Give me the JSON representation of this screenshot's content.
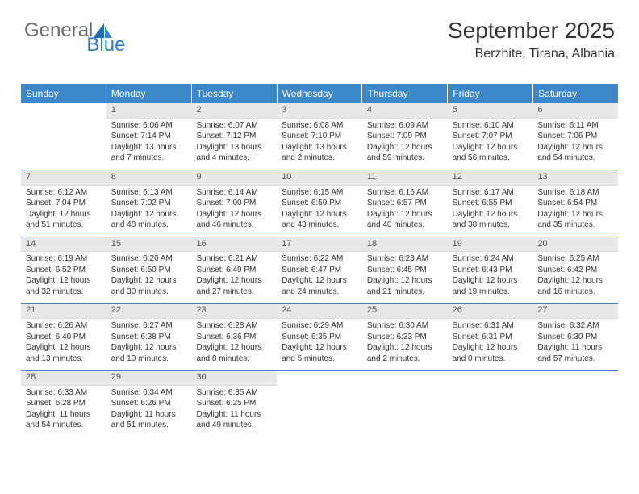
{
  "logo": {
    "general": "General",
    "blue": "Blue",
    "brand_color": "#2f7ac0",
    "gray": "#6b6b6b"
  },
  "header": {
    "month": "September 2025",
    "location": "Berzhite, Tirana, Albania"
  },
  "calendar": {
    "header_bg": "#3b87c8",
    "header_fg": "#ffffff",
    "rule_color": "#3b87c8",
    "daynum_bg": "#e8e8e8",
    "day_names": [
      "Sunday",
      "Monday",
      "Tuesday",
      "Wednesday",
      "Thursday",
      "Friday",
      "Saturday"
    ],
    "weeks": [
      [
        null,
        {
          "n": "1",
          "sunrise": "Sunrise: 6:06 AM",
          "sunset": "Sunset: 7:14 PM",
          "day1": "Daylight: 13 hours",
          "day2": "and 7 minutes."
        },
        {
          "n": "2",
          "sunrise": "Sunrise: 6:07 AM",
          "sunset": "Sunset: 7:12 PM",
          "day1": "Daylight: 13 hours",
          "day2": "and 4 minutes."
        },
        {
          "n": "3",
          "sunrise": "Sunrise: 6:08 AM",
          "sunset": "Sunset: 7:10 PM",
          "day1": "Daylight: 13 hours",
          "day2": "and 2 minutes."
        },
        {
          "n": "4",
          "sunrise": "Sunrise: 6:09 AM",
          "sunset": "Sunset: 7:09 PM",
          "day1": "Daylight: 12 hours",
          "day2": "and 59 minutes."
        },
        {
          "n": "5",
          "sunrise": "Sunrise: 6:10 AM",
          "sunset": "Sunset: 7:07 PM",
          "day1": "Daylight: 12 hours",
          "day2": "and 56 minutes."
        },
        {
          "n": "6",
          "sunrise": "Sunrise: 6:11 AM",
          "sunset": "Sunset: 7:06 PM",
          "day1": "Daylight: 12 hours",
          "day2": "and 54 minutes."
        }
      ],
      [
        {
          "n": "7",
          "sunrise": "Sunrise: 6:12 AM",
          "sunset": "Sunset: 7:04 PM",
          "day1": "Daylight: 12 hours",
          "day2": "and 51 minutes."
        },
        {
          "n": "8",
          "sunrise": "Sunrise: 6:13 AM",
          "sunset": "Sunset: 7:02 PM",
          "day1": "Daylight: 12 hours",
          "day2": "and 48 minutes."
        },
        {
          "n": "9",
          "sunrise": "Sunrise: 6:14 AM",
          "sunset": "Sunset: 7:00 PM",
          "day1": "Daylight: 12 hours",
          "day2": "and 46 minutes."
        },
        {
          "n": "10",
          "sunrise": "Sunrise: 6:15 AM",
          "sunset": "Sunset: 6:59 PM",
          "day1": "Daylight: 12 hours",
          "day2": "and 43 minutes."
        },
        {
          "n": "11",
          "sunrise": "Sunrise: 6:16 AM",
          "sunset": "Sunset: 6:57 PM",
          "day1": "Daylight: 12 hours",
          "day2": "and 40 minutes."
        },
        {
          "n": "12",
          "sunrise": "Sunrise: 6:17 AM",
          "sunset": "Sunset: 6:55 PM",
          "day1": "Daylight: 12 hours",
          "day2": "and 38 minutes."
        },
        {
          "n": "13",
          "sunrise": "Sunrise: 6:18 AM",
          "sunset": "Sunset: 6:54 PM",
          "day1": "Daylight: 12 hours",
          "day2": "and 35 minutes."
        }
      ],
      [
        {
          "n": "14",
          "sunrise": "Sunrise: 6:19 AM",
          "sunset": "Sunset: 6:52 PM",
          "day1": "Daylight: 12 hours",
          "day2": "and 32 minutes."
        },
        {
          "n": "15",
          "sunrise": "Sunrise: 6:20 AM",
          "sunset": "Sunset: 6:50 PM",
          "day1": "Daylight: 12 hours",
          "day2": "and 30 minutes."
        },
        {
          "n": "16",
          "sunrise": "Sunrise: 6:21 AM",
          "sunset": "Sunset: 6:49 PM",
          "day1": "Daylight: 12 hours",
          "day2": "and 27 minutes."
        },
        {
          "n": "17",
          "sunrise": "Sunrise: 6:22 AM",
          "sunset": "Sunset: 6:47 PM",
          "day1": "Daylight: 12 hours",
          "day2": "and 24 minutes."
        },
        {
          "n": "18",
          "sunrise": "Sunrise: 6:23 AM",
          "sunset": "Sunset: 6:45 PM",
          "day1": "Daylight: 12 hours",
          "day2": "and 21 minutes."
        },
        {
          "n": "19",
          "sunrise": "Sunrise: 6:24 AM",
          "sunset": "Sunset: 6:43 PM",
          "day1": "Daylight: 12 hours",
          "day2": "and 19 minutes."
        },
        {
          "n": "20",
          "sunrise": "Sunrise: 6:25 AM",
          "sunset": "Sunset: 6:42 PM",
          "day1": "Daylight: 12 hours",
          "day2": "and 16 minutes."
        }
      ],
      [
        {
          "n": "21",
          "sunrise": "Sunrise: 6:26 AM",
          "sunset": "Sunset: 6:40 PM",
          "day1": "Daylight: 12 hours",
          "day2": "and 13 minutes."
        },
        {
          "n": "22",
          "sunrise": "Sunrise: 6:27 AM",
          "sunset": "Sunset: 6:38 PM",
          "day1": "Daylight: 12 hours",
          "day2": "and 10 minutes."
        },
        {
          "n": "23",
          "sunrise": "Sunrise: 6:28 AM",
          "sunset": "Sunset: 6:36 PM",
          "day1": "Daylight: 12 hours",
          "day2": "and 8 minutes."
        },
        {
          "n": "24",
          "sunrise": "Sunrise: 6:29 AM",
          "sunset": "Sunset: 6:35 PM",
          "day1": "Daylight: 12 hours",
          "day2": "and 5 minutes."
        },
        {
          "n": "25",
          "sunrise": "Sunrise: 6:30 AM",
          "sunset": "Sunset: 6:33 PM",
          "day1": "Daylight: 12 hours",
          "day2": "and 2 minutes."
        },
        {
          "n": "26",
          "sunrise": "Sunrise: 6:31 AM",
          "sunset": "Sunset: 6:31 PM",
          "day1": "Daylight: 12 hours",
          "day2": "and 0 minutes."
        },
        {
          "n": "27",
          "sunrise": "Sunrise: 6:32 AM",
          "sunset": "Sunset: 6:30 PM",
          "day1": "Daylight: 11 hours",
          "day2": "and 57 minutes."
        }
      ],
      [
        {
          "n": "28",
          "sunrise": "Sunrise: 6:33 AM",
          "sunset": "Sunset: 6:28 PM",
          "day1": "Daylight: 11 hours",
          "day2": "and 54 minutes."
        },
        {
          "n": "29",
          "sunrise": "Sunrise: 6:34 AM",
          "sunset": "Sunset: 6:26 PM",
          "day1": "Daylight: 11 hours",
          "day2": "and 51 minutes."
        },
        {
          "n": "30",
          "sunrise": "Sunrise: 6:35 AM",
          "sunset": "Sunset: 6:25 PM",
          "day1": "Daylight: 11 hours",
          "day2": "and 49 minutes."
        },
        null,
        null,
        null,
        null
      ]
    ]
  }
}
